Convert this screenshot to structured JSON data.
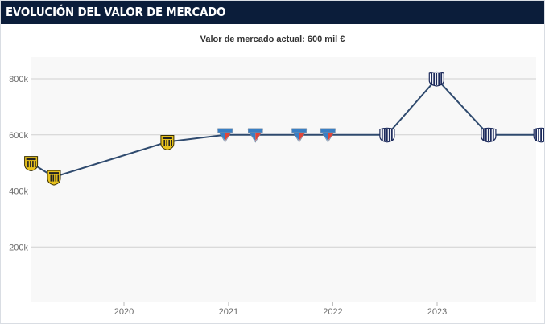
{
  "header": {
    "title": "Evolución del valor de mercado"
  },
  "subtitle": "Valor de mercado actual: 600 mil €",
  "colors": {
    "header_bg": "#0b1d3a",
    "line": "#2f4a6e",
    "plot_bg": "#f8f8f8",
    "grid": "#d0d0d0",
    "badge_gold": "#e8c21d",
    "badge_red": "#e0463a",
    "badge_blue": "#3a7fc4",
    "badge_navy": "#1d2b5c"
  },
  "chart_data": {
    "type": "line",
    "title": "",
    "xlabel": "",
    "ylabel": "",
    "x_ticks": [
      "2020",
      "2021",
      "2022",
      "2023"
    ],
    "y_ticks": [
      "200k",
      "400k",
      "600k",
      "800k"
    ],
    "ylim": [
      0,
      850000
    ],
    "xlim": [
      "2019-01-31",
      "2023-12-31"
    ],
    "grid": true,
    "series": [
      {
        "points": [
          {
            "date": "2019-02-10",
            "value": 500000,
            "club": "gold-black"
          },
          {
            "date": "2019-05-01",
            "value": 450000,
            "club": "gold-black"
          },
          {
            "date": "2020-06-01",
            "value": 575000,
            "club": "gold-black"
          },
          {
            "date": "2020-12-20",
            "value": 600000,
            "club": "red-blue"
          },
          {
            "date": "2021-04-05",
            "value": 600000,
            "club": "red-blue"
          },
          {
            "date": "2021-09-05",
            "value": 600000,
            "club": "red-blue"
          },
          {
            "date": "2021-12-15",
            "value": 600000,
            "club": "red-blue"
          },
          {
            "date": "2022-07-10",
            "value": 600000,
            "club": "navy-white"
          },
          {
            "date": "2022-12-30",
            "value": 800000,
            "club": "navy-white"
          },
          {
            "date": "2023-06-30",
            "value": 600000,
            "club": "navy-white"
          },
          {
            "date": "2023-12-31",
            "value": 600000,
            "club": "navy-white"
          }
        ]
      }
    ]
  }
}
